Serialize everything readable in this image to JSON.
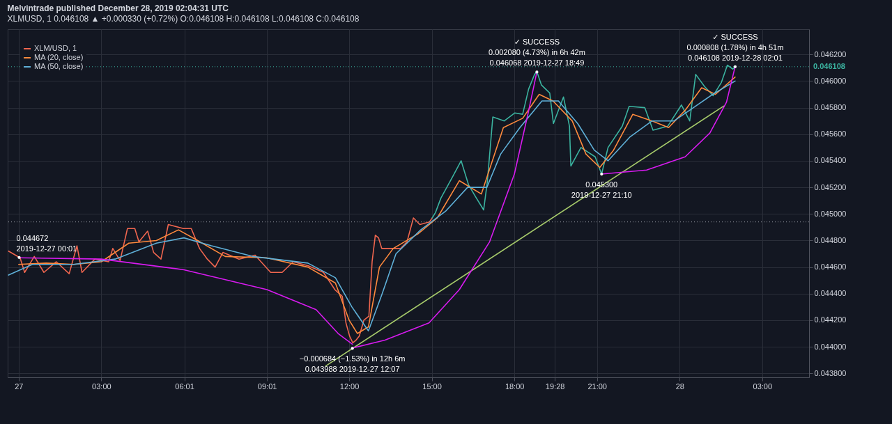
{
  "chart_data": {
    "type": "line",
    "title": "Melvintrade published December 28, 2019 02:04:31 UTC",
    "subtitle": "XLMUSD, 1 0.046108 ▲ +0.000330 (+0.72%) O:0.046108 H:0.046108 L:0.046108 C:0.046108",
    "xlim": [
      "2019-12-26T23:36",
      "2019-12-28T04:42"
    ],
    "ylim": [
      0.04377,
      0.04639
    ],
    "xticks": [
      {
        "value": "2019-12-27T00:00",
        "label": "27"
      },
      {
        "value": "2019-12-27T03:00",
        "label": "03:00"
      },
      {
        "value": "2019-12-27T06:01",
        "label": "06:01"
      },
      {
        "value": "2019-12-27T09:01",
        "label": "09:01"
      },
      {
        "value": "2019-12-27T12:00",
        "label": "12:00"
      },
      {
        "value": "2019-12-27T15:00",
        "label": "15:00"
      },
      {
        "value": "2019-12-27T18:00",
        "label": "18:00"
      },
      {
        "value": "2019-12-27T19:28",
        "label": "19:28"
      },
      {
        "value": "2019-12-27T21:00",
        "label": "21:00"
      },
      {
        "value": "2019-12-28T00:00",
        "label": "28"
      },
      {
        "value": "2019-12-28T03:00",
        "label": "03:00"
      }
    ],
    "yticks": [
      {
        "value": 0.0438,
        "label": "0.043800"
      },
      {
        "value": 0.044,
        "label": "0.044000"
      },
      {
        "value": 0.0442,
        "label": "0.044200"
      },
      {
        "value": 0.0444,
        "label": "0.044400"
      },
      {
        "value": 0.0446,
        "label": "0.044600"
      },
      {
        "value": 0.0448,
        "label": "0.044800"
      },
      {
        "value": 0.045,
        "label": "0.045000"
      },
      {
        "value": 0.0452,
        "label": "0.045200"
      },
      {
        "value": 0.0454,
        "label": "0.045400"
      },
      {
        "value": 0.0456,
        "label": "0.045600"
      },
      {
        "value": 0.0458,
        "label": "0.045800"
      },
      {
        "value": 0.046,
        "label": "0.046000"
      },
      {
        "value": 0.0462,
        "label": "0.046200"
      }
    ],
    "grid": true,
    "legend": "top left",
    "marker": "none",
    "series": [
      {
        "name": "XLM/USD, 1",
        "color": "#f0664f",
        "x": [
          "2019-12-26T23:38",
          "2019-12-27T00:03",
          "2019-12-27T00:13",
          "2019-12-27T00:34",
          "2019-12-27T00:55",
          "2019-12-27T01:22",
          "2019-12-27T01:50",
          "2019-12-27T02:07",
          "2019-12-27T02:18",
          "2019-12-27T02:46",
          "2019-12-27T03:16",
          "2019-12-27T03:25",
          "2019-12-27T03:41",
          "2019-12-27T03:57",
          "2019-12-27T04:13",
          "2019-12-27T04:22",
          "2019-12-27T04:41",
          "2019-12-27T04:54",
          "2019-12-27T05:10",
          "2019-12-27T05:26",
          "2019-12-27T05:59",
          "2019-12-27T06:16",
          "2019-12-27T06:34",
          "2019-12-27T06:51",
          "2019-12-27T07:08",
          "2019-12-27T07:25",
          "2019-12-27T08:00",
          "2019-12-27T08:35",
          "2019-12-27T09:09",
          "2019-12-27T09:34",
          "2019-12-27T09:58",
          "2019-12-27T10:31",
          "2019-12-27T11:04",
          "2019-12-27T11:29",
          "2019-12-27T11:45",
          "2019-12-27T11:53",
          "2019-12-27T12:01",
          "2019-12-27T12:08",
          "2019-12-27T12:15",
          "2019-12-27T12:22",
          "2019-12-27T12:32",
          "2019-12-27T12:43",
          "2019-12-27T12:50",
          "2019-12-27T12:57",
          "2019-12-27T13:04",
          "2019-12-27T13:11",
          "2019-12-27T13:31",
          "2019-12-27T13:52",
          "2019-12-27T14:06",
          "2019-12-27T14:20",
          "2019-12-27T14:34",
          "2019-12-27T14:55",
          "2019-12-27T15:01"
        ],
        "values": [
          0.04472,
          0.04467,
          0.04456,
          0.04468,
          0.04456,
          0.04464,
          0.04455,
          0.04476,
          0.04456,
          0.04466,
          0.04464,
          0.04474,
          0.04465,
          0.04489,
          0.04489,
          0.04479,
          0.04487,
          0.04471,
          0.04466,
          0.04492,
          0.04489,
          0.04489,
          0.04474,
          0.04466,
          0.0446,
          0.04471,
          0.04466,
          0.04469,
          0.04456,
          0.04456,
          0.04464,
          0.04461,
          0.04456,
          0.04443,
          0.04438,
          0.04418,
          0.04408,
          0.04403,
          0.04405,
          0.04408,
          0.0442,
          0.04423,
          0.04464,
          0.04484,
          0.04482,
          0.04474,
          0.04474,
          0.04474,
          0.04479,
          0.04497,
          0.04492,
          0.04494,
          0.04497
        ]
      },
      {
        "color": "#3bb3a0",
        "x": [
          "2019-12-27T15:01",
          "2019-12-27T15:08",
          "2019-12-27T15:20",
          "2019-12-27T15:47",
          "2019-12-27T16:04",
          "2019-12-27T16:20",
          "2019-12-27T16:37",
          "2019-12-27T16:53",
          "2019-12-27T17:01",
          "2019-12-27T17:13",
          "2019-12-27T17:38",
          "2019-12-27T18:01",
          "2019-12-27T18:18",
          "2019-12-27T18:31",
          "2019-12-27T18:44",
          "2019-12-27T18:49",
          "2019-12-27T18:59",
          "2019-12-27T19:17",
          "2019-12-27T19:25",
          "2019-12-27T19:47",
          "2019-12-27T20:00",
          "2019-12-27T20:03",
          "2019-12-27T20:25",
          "2019-12-27T20:56",
          "2019-12-27T21:10",
          "2019-12-27T21:24",
          "2019-12-27T21:55",
          "2019-12-27T22:10",
          "2019-12-27T22:44",
          "2019-12-27T23:02",
          "2019-12-27T23:34",
          "2019-12-28T00:04",
          "2019-12-28T00:22",
          "2019-12-28T00:35",
          "2019-12-28T00:54",
          "2019-12-28T01:13",
          "2019-12-28T01:31",
          "2019-12-28T01:44",
          "2019-12-28T01:56",
          "2019-12-28T02:01"
        ],
        "values": [
          0.04497,
          0.04501,
          0.04512,
          0.04529,
          0.0454,
          0.04522,
          0.04512,
          0.04503,
          0.04524,
          0.04573,
          0.0457,
          0.04576,
          0.04575,
          0.04594,
          0.04605,
          0.04607,
          0.04597,
          0.04591,
          0.04568,
          0.04588,
          0.04566,
          0.04536,
          0.0455,
          0.04543,
          0.0453,
          0.0455,
          0.04566,
          0.04581,
          0.0458,
          0.04563,
          0.04566,
          0.04582,
          0.0457,
          0.04605,
          0.04596,
          0.04589,
          0.04599,
          0.04612,
          0.04609,
          0.046108
        ]
      },
      {
        "name": "MA (20, close)",
        "color": "#ff8a3d",
        "x": [
          "2019-12-27T00:00",
          "2019-12-27T01:00",
          "2019-12-27T02:00",
          "2019-12-27T03:00",
          "2019-12-27T04:00",
          "2019-12-27T05:00",
          "2019-12-27T05:48",
          "2019-12-27T06:30",
          "2019-12-27T07:30",
          "2019-12-27T09:00",
          "2019-12-27T10:30",
          "2019-12-27T11:30",
          "2019-12-27T12:00",
          "2019-12-27T12:18",
          "2019-12-27T12:42",
          "2019-12-27T13:06",
          "2019-12-27T13:36",
          "2019-12-27T14:30",
          "2019-12-27T15:12",
          "2019-12-27T16:00",
          "2019-12-27T16:48",
          "2019-12-27T17:12",
          "2019-12-27T17:36",
          "2019-12-27T18:18",
          "2019-12-27T18:54",
          "2019-12-27T19:24",
          "2019-12-27T20:06",
          "2019-12-27T20:36",
          "2019-12-27T21:06",
          "2019-12-27T21:36",
          "2019-12-27T22:18",
          "2019-12-27T23:00",
          "2019-12-27T23:36",
          "2019-12-28T00:12",
          "2019-12-28T00:48",
          "2019-12-28T01:18",
          "2019-12-28T02:01"
        ],
        "values": [
          0.04462,
          0.04463,
          0.04462,
          0.04464,
          0.04478,
          0.0448,
          0.04488,
          0.0448,
          0.04468,
          0.04467,
          0.0446,
          0.04448,
          0.0442,
          0.0441,
          0.04415,
          0.0446,
          0.04474,
          0.04485,
          0.04497,
          0.04525,
          0.04515,
          0.0454,
          0.04565,
          0.04572,
          0.0459,
          0.04585,
          0.0457,
          0.04545,
          0.04535,
          0.04548,
          0.04575,
          0.0457,
          0.04565,
          0.04578,
          0.04595,
          0.0459,
          0.04603
        ]
      },
      {
        "name": "MA (50, close)",
        "color": "#5fb0d8",
        "x": [
          "2019-12-26T23:38",
          "2019-12-27T00:30",
          "2019-12-27T02:00",
          "2019-12-27T03:30",
          "2019-12-27T05:00",
          "2019-12-27T06:00",
          "2019-12-27T07:00",
          "2019-12-27T08:30",
          "2019-12-27T10:30",
          "2019-12-27T11:30",
          "2019-12-27T12:06",
          "2019-12-27T12:42",
          "2019-12-27T13:12",
          "2019-12-27T13:42",
          "2019-12-27T14:36",
          "2019-12-27T15:30",
          "2019-12-27T16:18",
          "2019-12-27T17:00",
          "2019-12-27T17:30",
          "2019-12-27T18:12",
          "2019-12-27T19:00",
          "2019-12-27T19:36",
          "2019-12-27T20:18",
          "2019-12-27T20:54",
          "2019-12-27T21:24",
          "2019-12-27T22:12",
          "2019-12-27T23:00",
          "2019-12-27T23:48",
          "2019-12-28T00:30",
          "2019-12-28T01:12",
          "2019-12-28T02:01"
        ],
        "values": [
          0.04454,
          0.04462,
          0.04462,
          0.04466,
          0.04478,
          0.04482,
          0.04476,
          0.04468,
          0.04463,
          0.04452,
          0.0443,
          0.04412,
          0.0444,
          0.0447,
          0.04488,
          0.04502,
          0.0452,
          0.0452,
          0.04545,
          0.04565,
          0.04585,
          0.04585,
          0.04568,
          0.04548,
          0.0454,
          0.04558,
          0.0457,
          0.0457,
          0.0458,
          0.0459,
          0.046
        ]
      },
      {
        "color": "#a5c96a",
        "x": [
          "2019-12-27T11:09",
          "2019-12-28T01:36"
        ],
        "values": [
          0.043856,
          0.045812
        ]
      },
      {
        "color": "#d81bf0",
        "x": [
          "2019-12-27T00:01",
          "2019-12-27T03:00",
          "2019-12-27T06:00",
          "2019-12-27T09:01",
          "2019-12-27T10:48",
          "2019-12-27T11:36",
          "2019-12-27T12:07"
        ],
        "values": [
          0.04467,
          0.04466,
          0.04458,
          0.04443,
          0.04428,
          0.0441,
          0.04402
        ]
      },
      {
        "color": "#d81bf0",
        "x": [
          "2019-12-27T12:07",
          "2019-12-27T13:18",
          "2019-12-27T14:54",
          "2019-12-27T16:00",
          "2019-12-27T17:06",
          "2019-12-27T18:00",
          "2019-12-27T18:30",
          "2019-12-27T18:49"
        ],
        "values": [
          0.04399,
          0.04405,
          0.04418,
          0.04443,
          0.04479,
          0.0453,
          0.04576,
          0.04607
        ]
      },
      {
        "color": "#d81bf0",
        "x": [
          "2019-12-27T21:10",
          "2019-12-27T22:48",
          "2019-12-28T00:12",
          "2019-12-28T01:06",
          "2019-12-28T01:42",
          "2019-12-28T02:01"
        ],
        "values": [
          0.0453,
          0.04533,
          0.04543,
          0.04561,
          0.04584,
          0.04611
        ]
      }
    ],
    "ref_lines": [
      {
        "axis": "y",
        "value": 0.046108,
        "label": "0.046108",
        "color": "#3bb3a0",
        "line_style": "dotted"
      },
      {
        "axis": "y",
        "value": 0.04494,
        "color": "#9598a1",
        "line_style": "dotted"
      }
    ],
    "annotations": [
      {
        "text": "0.044672",
        "x": "2019-12-27T00:01",
        "y": 0.044672
      },
      {
        "text": "2019-12-27 00:01",
        "x": "2019-12-27T00:01",
        "y": 0.044672
      },
      {
        "text": "−0.000684 (−1.53%) in 12h 6m",
        "x": "2019-12-27T12:07",
        "y": 0.043988
      },
      {
        "text": "0.043988 2019-12-27 12:07",
        "x": "2019-12-27T12:07",
        "y": 0.043988
      },
      "✓ SUCCESS",
      {
        "text": "0.002080 (4.73%) in 6h 42m",
        "x": "2019-12-27T18:49",
        "y": 0.046068
      },
      {
        "text": "0.046068 2019-12-27 18:49",
        "x": "2019-12-27T18:49",
        "y": 0.046068
      },
      {
        "text": "0.045300",
        "x": "2019-12-27T21:10",
        "y": 0.0453
      },
      {
        "text": "2019-12-27 21:10",
        "x": "2019-12-27T21:10",
        "y": 0.0453
      },
      "✓ SUCCESS",
      {
        "text": "0.000808 (1.78%) in 4h 51m",
        "x": "2019-12-28T02:01",
        "y": 0.046108
      },
      {
        "text": "0.046108 2019-12-28 02:01",
        "x": "2019-12-28T02:01",
        "y": 0.046108
      }
    ]
  }
}
